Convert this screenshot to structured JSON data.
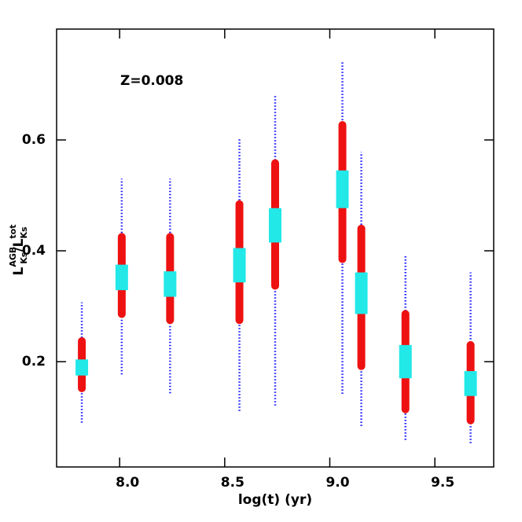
{
  "chart_data": {
    "type": "range",
    "annotation": "Z=0.008",
    "xlabel": "log(t) (yr)",
    "ylabel": [
      "L",
      "AGB",
      "Ks",
      "/",
      "L",
      "tot",
      "Ks"
    ],
    "xlim": [
      7.7,
      9.78
    ],
    "ylim": [
      0.01,
      0.8
    ],
    "xticks": [
      {
        "value": 8,
        "label": "8.0"
      },
      {
        "value": 8.5,
        "label": "8.5"
      },
      {
        "value": 9,
        "label": "9.0"
      },
      {
        "value": 9.5,
        "label": "9.5"
      }
    ],
    "yticks": [
      0.2,
      0.4,
      0.6
    ],
    "x": [
      7.82,
      8.01,
      8.24,
      8.57,
      8.74,
      9.06,
      9.15,
      9.36,
      9.67
    ],
    "series": [
      {
        "color": "#1a1aff",
        "style": "dots",
        "low": [
          0.09,
          0.177,
          0.143,
          0.111,
          0.121,
          0.142,
          0.084,
          0.059,
          0.053
        ],
        "high": [
          0.307,
          0.53,
          0.53,
          0.603,
          0.682,
          0.743,
          0.578,
          0.392,
          0.361
        ]
      },
      {
        "color": "#ee1111",
        "style": "circles",
        "low": [
          0.152,
          0.286,
          0.275,
          0.275,
          0.337,
          0.385,
          0.192,
          0.114,
          0.094
        ],
        "high": [
          0.237,
          0.425,
          0.425,
          0.484,
          0.558,
          0.627,
          0.44,
          0.286,
          0.23
        ]
      },
      {
        "color": "#22e8e8",
        "style": "squares",
        "low": [
          0.175,
          0.329,
          0.317,
          0.343,
          0.415,
          0.477,
          0.286,
          0.17,
          0.138
        ],
        "high": [
          0.204,
          0.375,
          0.363,
          0.405,
          0.477,
          0.545,
          0.361,
          0.23,
          0.183
        ]
      }
    ]
  }
}
